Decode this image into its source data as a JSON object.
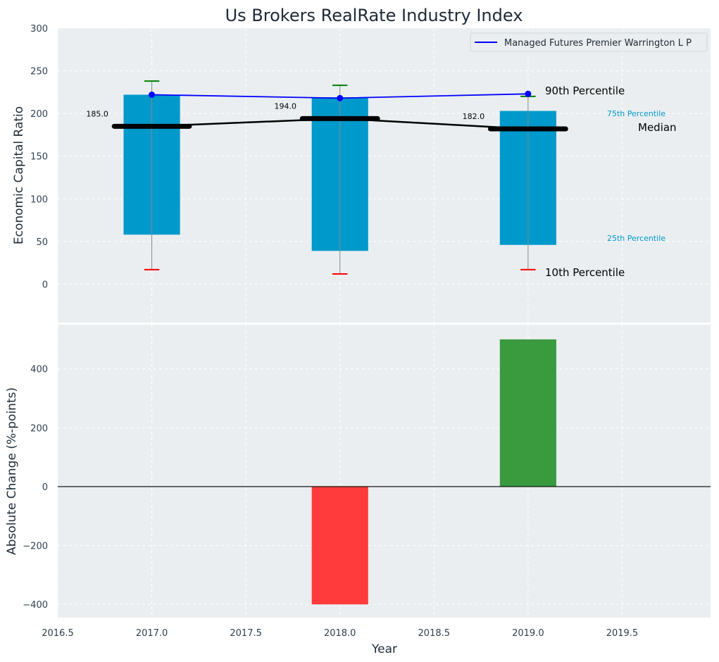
{
  "chart_data": {
    "title": "Us Brokers RealRate Industry Index",
    "xlabel": "Year",
    "x_ticks": [
      "2016.5",
      "2017.0",
      "2017.5",
      "2018.0",
      "2018.5",
      "2019.0",
      "2019.5"
    ],
    "xlim": [
      2016.5,
      2019.97
    ],
    "grid": true,
    "panels": [
      {
        "type": "box-percentile",
        "ylabel": "Economic Capital Ratio",
        "ylim": [
          -45,
          300
        ],
        "y_ticks": [
          "0",
          "50",
          "100",
          "150",
          "200",
          "250",
          "300"
        ],
        "years": [
          2017,
          2018,
          2019
        ],
        "p10": [
          17,
          12,
          17
        ],
        "p25": [
          58,
          39,
          46
        ],
        "median": [
          185,
          194,
          182
        ],
        "p75": [
          222,
          219,
          203
        ],
        "p90": [
          238,
          233,
          220
        ],
        "median_labels": [
          "185.0",
          "194.0",
          "182.0"
        ],
        "series": [
          {
            "name": "Managed Futures Premier Warrington L P",
            "x": [
              2017,
              2018,
              2019
            ],
            "y": [
              222,
              218,
              223
            ],
            "color": "#0000ff"
          }
        ],
        "legend_position": "top-right",
        "annotations": {
          "p90": "90th Percentile",
          "p75": "75th Percentile",
          "median": "Median",
          "p25": "25th Percentile",
          "p10": "10th Percentile"
        }
      },
      {
        "type": "bar",
        "ylabel": "Absolute Change (%-points)",
        "ylim": [
          -445,
          550
        ],
        "y_ticks": [
          "−400",
          "−200",
          "0",
          "200",
          "400"
        ],
        "x": [
          2018,
          2019
        ],
        "values": [
          -400,
          500
        ],
        "colors": [
          "#ff3b3b",
          "#3a9a3e"
        ]
      }
    ]
  }
}
